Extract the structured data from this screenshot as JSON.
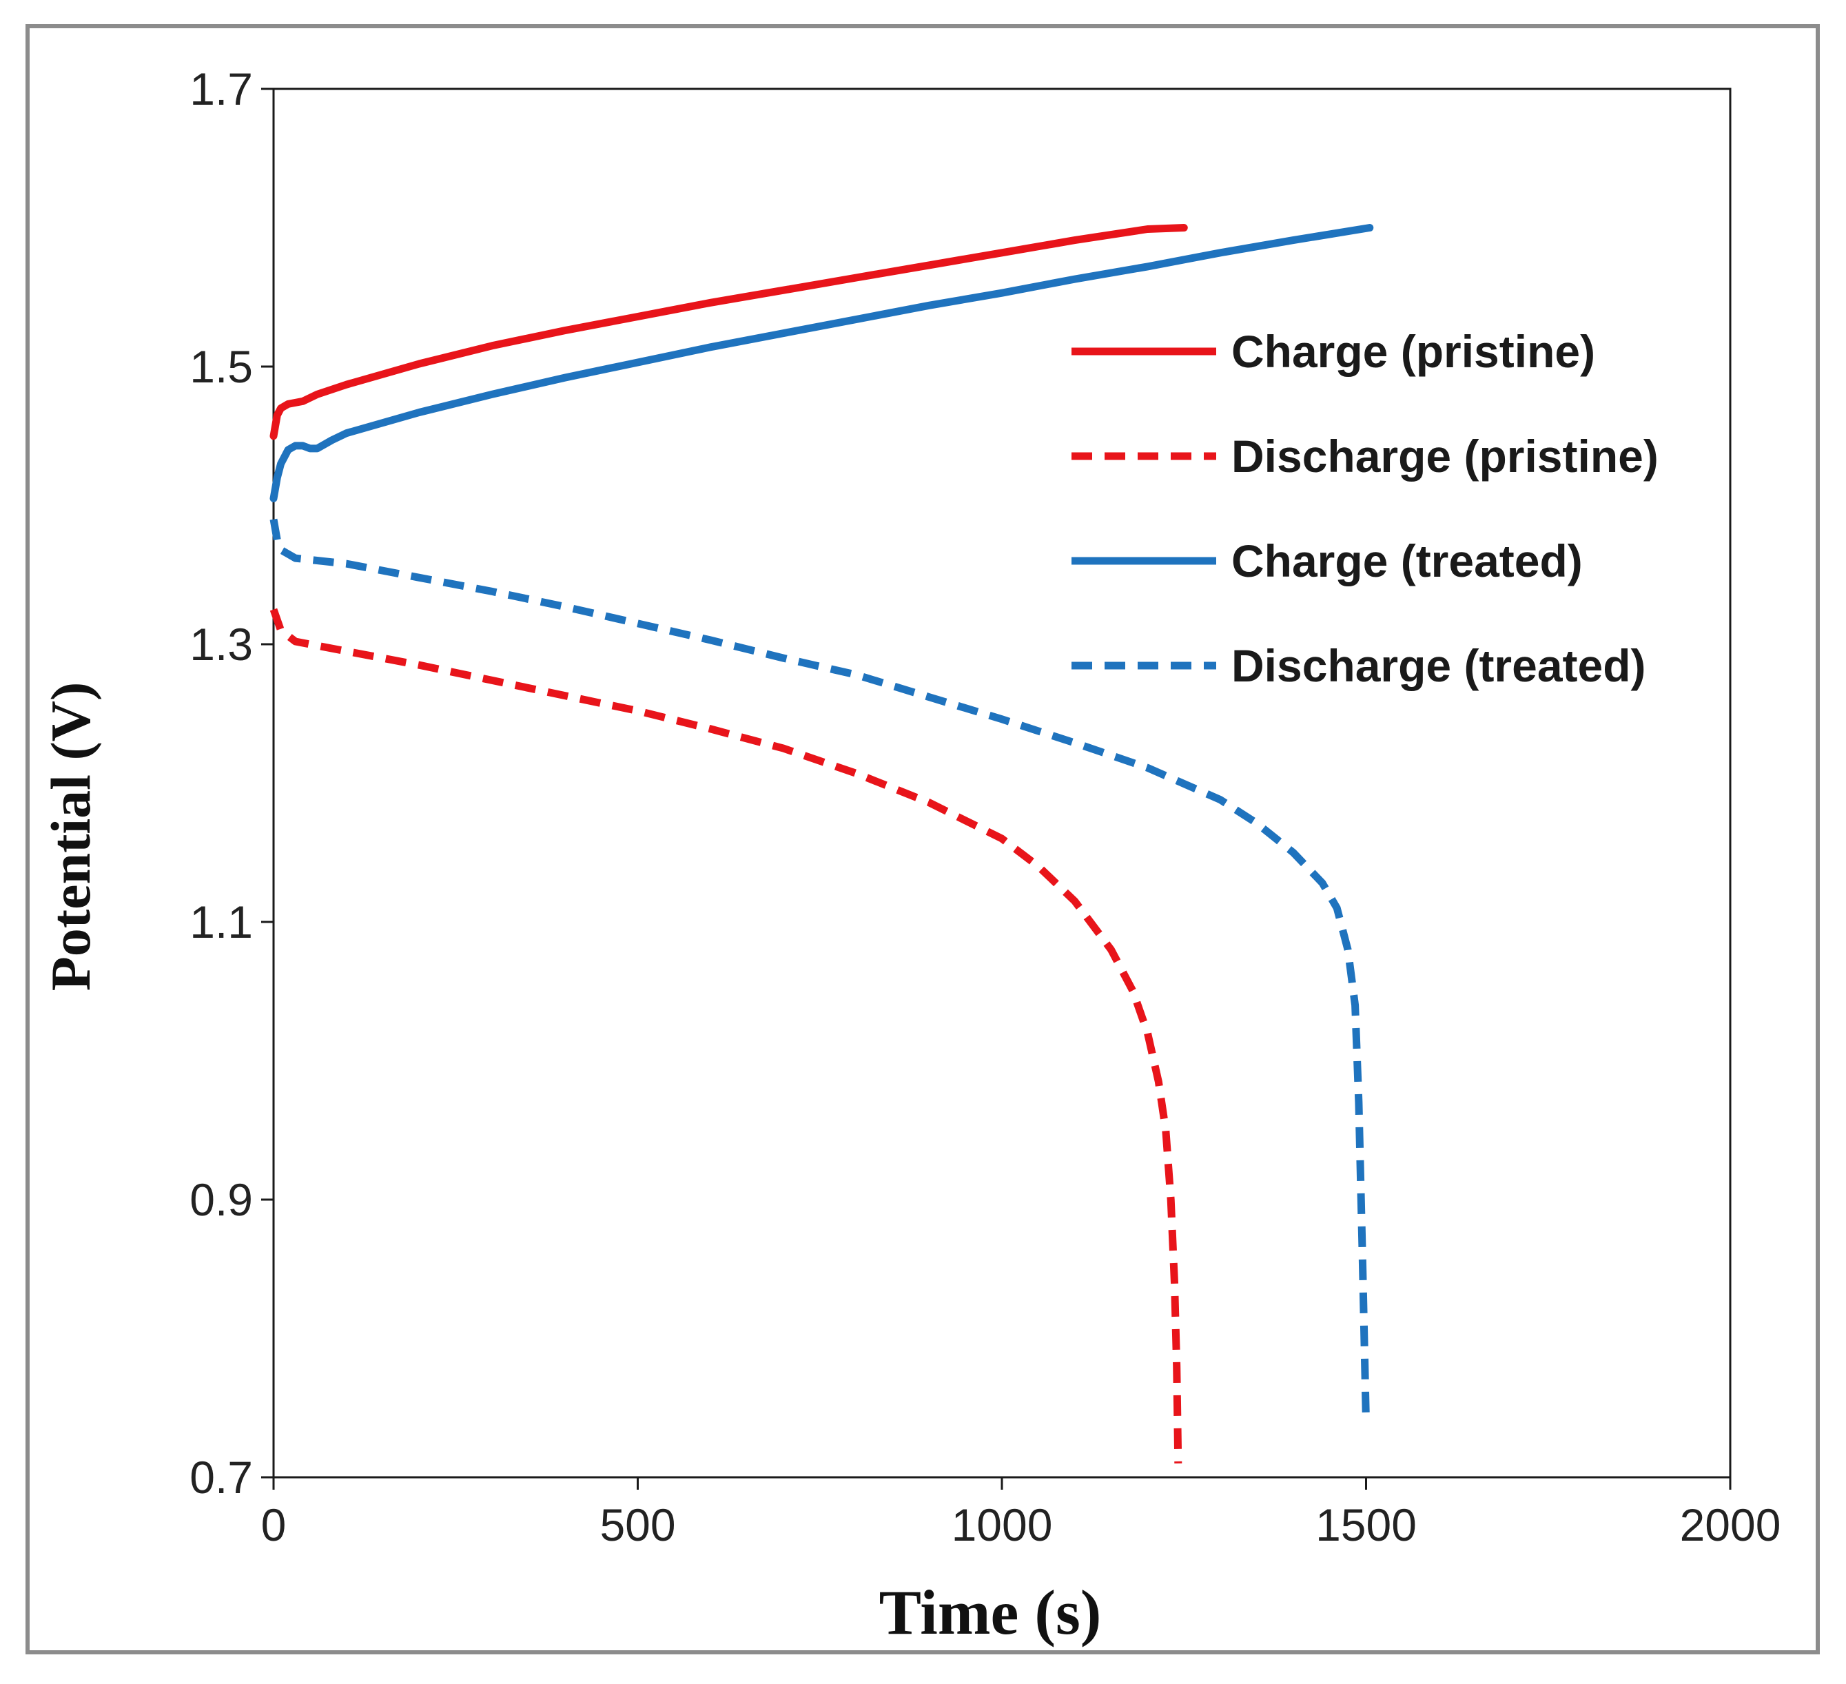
{
  "chart_data": {
    "type": "line",
    "title": "",
    "xlabel": "Time (s)",
    "ylabel": "Potential (V)",
    "xlim": [
      0,
      2000
    ],
    "ylim": [
      0.7,
      1.7
    ],
    "xticks": [
      0,
      500,
      1000,
      1500,
      2000
    ],
    "yticks": [
      0.7,
      0.9,
      1.1,
      1.3,
      1.5,
      1.7
    ],
    "xtick_labels": [
      "0",
      "500",
      "1000",
      "1500",
      "2000"
    ],
    "ytick_labels": [
      "0.7",
      "0.9",
      "1.1",
      "1.3",
      "1.5",
      "1.7"
    ],
    "grid": false,
    "legend_position": "upper-right",
    "series": [
      {
        "name": "Charge (pristine)",
        "color": "#e8141a",
        "style": "solid",
        "x": [
          0,
          5,
          10,
          20,
          40,
          60,
          100,
          200,
          300,
          400,
          500,
          600,
          700,
          800,
          900,
          1000,
          1100,
          1200,
          1250
        ],
        "y": [
          1.45,
          1.465,
          1.47,
          1.473,
          1.475,
          1.48,
          1.487,
          1.502,
          1.515,
          1.526,
          1.536,
          1.546,
          1.555,
          1.564,
          1.573,
          1.582,
          1.591,
          1.599,
          1.6
        ]
      },
      {
        "name": "Discharge (pristine)",
        "color": "#e8141a",
        "style": "dashed",
        "x": [
          0,
          10,
          30,
          100,
          200,
          300,
          400,
          500,
          600,
          700,
          800,
          900,
          1000,
          1050,
          1100,
          1150,
          1180,
          1200,
          1215,
          1225,
          1232,
          1237,
          1240,
          1242
        ],
        "y": [
          1.325,
          1.31,
          1.302,
          1.295,
          1.285,
          1.274,
          1.263,
          1.252,
          1.239,
          1.225,
          1.207,
          1.186,
          1.16,
          1.14,
          1.115,
          1.08,
          1.05,
          1.02,
          0.985,
          0.95,
          0.9,
          0.84,
          0.78,
          0.71
        ]
      },
      {
        "name": "Charge (treated)",
        "color": "#1f73be",
        "style": "solid",
        "x": [
          0,
          5,
          10,
          20,
          30,
          40,
          50,
          60,
          80,
          100,
          200,
          300,
          400,
          500,
          600,
          700,
          800,
          900,
          1000,
          1100,
          1200,
          1300,
          1400,
          1505
        ],
        "y": [
          1.405,
          1.42,
          1.43,
          1.44,
          1.443,
          1.443,
          1.441,
          1.441,
          1.447,
          1.452,
          1.467,
          1.48,
          1.492,
          1.503,
          1.514,
          1.524,
          1.534,
          1.544,
          1.553,
          1.563,
          1.572,
          1.582,
          1.591,
          1.6
        ]
      },
      {
        "name": "Discharge (treated)",
        "color": "#1f73be",
        "style": "dashed",
        "x": [
          0,
          5,
          10,
          20,
          30,
          100,
          200,
          300,
          400,
          500,
          600,
          700,
          800,
          900,
          1000,
          1100,
          1200,
          1300,
          1350,
          1400,
          1440,
          1460,
          1475,
          1485,
          1490,
          1495,
          1500
        ],
        "y": [
          1.39,
          1.375,
          1.368,
          1.365,
          1.362,
          1.358,
          1.348,
          1.338,
          1.327,
          1.315,
          1.303,
          1.29,
          1.278,
          1.262,
          1.246,
          1.229,
          1.211,
          1.188,
          1.171,
          1.15,
          1.128,
          1.11,
          1.08,
          1.04,
          0.97,
          0.86,
          0.74
        ]
      }
    ]
  }
}
